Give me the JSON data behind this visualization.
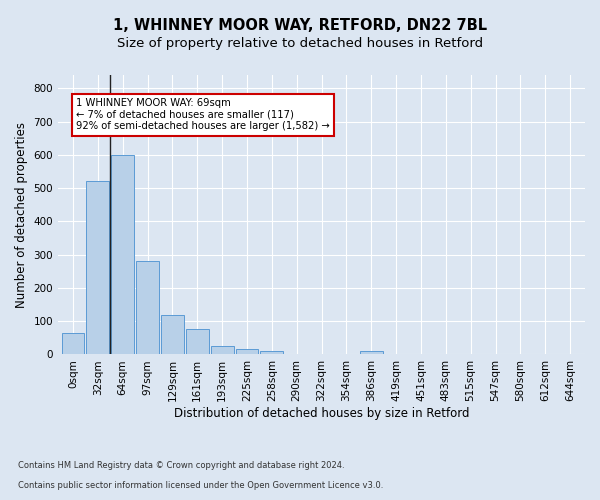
{
  "title": "1, WHINNEY MOOR WAY, RETFORD, DN22 7BL",
  "subtitle": "Size of property relative to detached houses in Retford",
  "xlabel": "Distribution of detached houses by size in Retford",
  "ylabel": "Number of detached properties",
  "footnote1": "Contains HM Land Registry data © Crown copyright and database right 2024.",
  "footnote2": "Contains public sector information licensed under the Open Government Licence v3.0.",
  "bar_labels": [
    "0sqm",
    "32sqm",
    "64sqm",
    "97sqm",
    "129sqm",
    "161sqm",
    "193sqm",
    "225sqm",
    "258sqm",
    "290sqm",
    "322sqm",
    "354sqm",
    "386sqm",
    "419sqm",
    "451sqm",
    "483sqm",
    "515sqm",
    "547sqm",
    "580sqm",
    "612sqm",
    "644sqm"
  ],
  "bar_values": [
    65,
    520,
    600,
    280,
    120,
    78,
    25,
    15,
    11,
    0,
    0,
    0,
    9,
    0,
    0,
    0,
    0,
    0,
    0,
    0,
    0
  ],
  "bar_color": "#b8d0e8",
  "bar_edge_color": "#5b9bd5",
  "property_line_bin": 1,
  "annotation_text": "1 WHINNEY MOOR WAY: 69sqm\n← 7% of detached houses are smaller (117)\n92% of semi-detached houses are larger (1,582) →",
  "annotation_box_color": "#ffffff",
  "annotation_box_edge_color": "#cc0000",
  "vline_color": "#222222",
  "ylim": [
    0,
    840
  ],
  "yticks": [
    0,
    100,
    200,
    300,
    400,
    500,
    600,
    700,
    800
  ],
  "bg_color": "#dce6f2",
  "plot_bg_color": "#dce6f2",
  "grid_color": "#ffffff",
  "title_fontsize": 10.5,
  "subtitle_fontsize": 9.5,
  "axis_label_fontsize": 8.5,
  "tick_fontsize": 7.5,
  "footnote_fontsize": 6.0
}
